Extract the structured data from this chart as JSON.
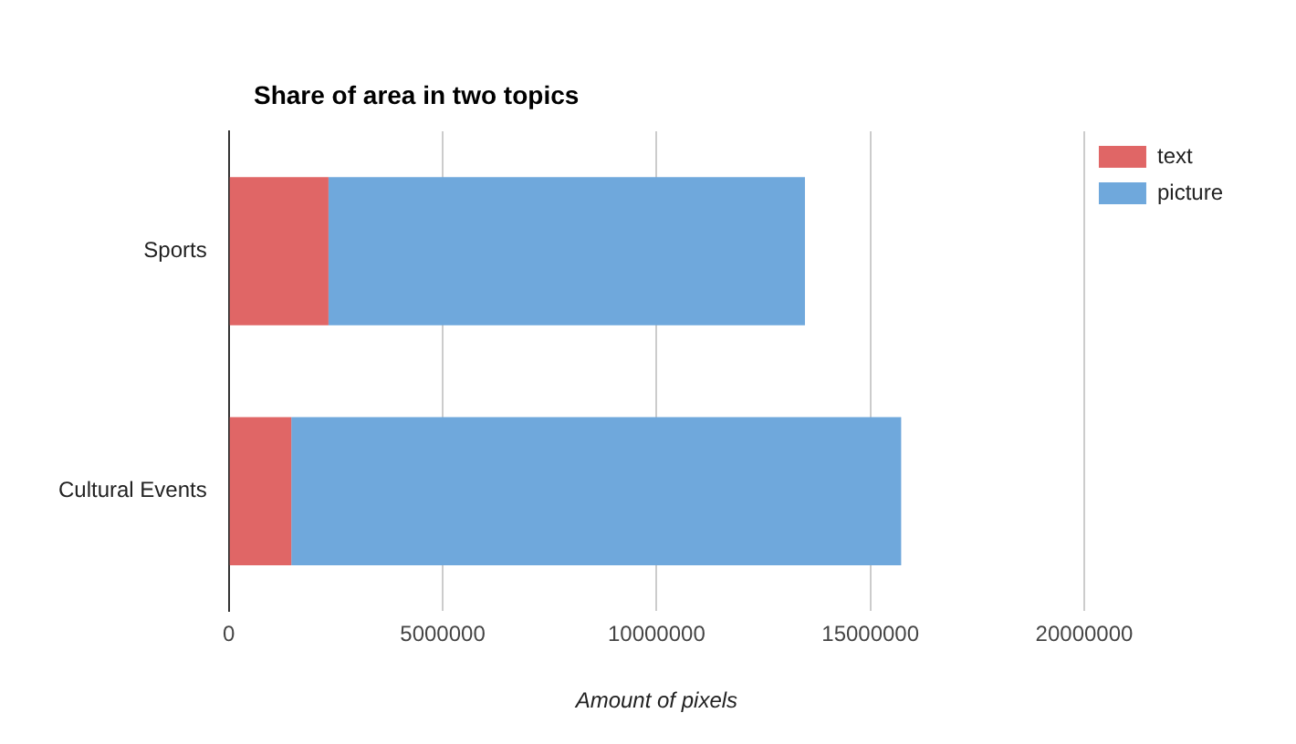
{
  "chart_data": {
    "type": "bar",
    "orientation": "horizontal",
    "stacked": true,
    "title": "Share of area in two topics",
    "xlabel": "Amount of pixels",
    "categories": [
      "Sports",
      "Cultural Events"
    ],
    "series": [
      {
        "name": "text",
        "color": "#e06666",
        "values": [
          2330000,
          1460000
        ]
      },
      {
        "name": "picture",
        "color": "#6fa8dc",
        "values": [
          11140000,
          14260000
        ]
      }
    ],
    "xlim": [
      0,
      20000000
    ],
    "xticks": [
      0,
      5000000,
      10000000,
      15000000,
      20000000
    ],
    "grid": "x",
    "legend": "top right"
  }
}
